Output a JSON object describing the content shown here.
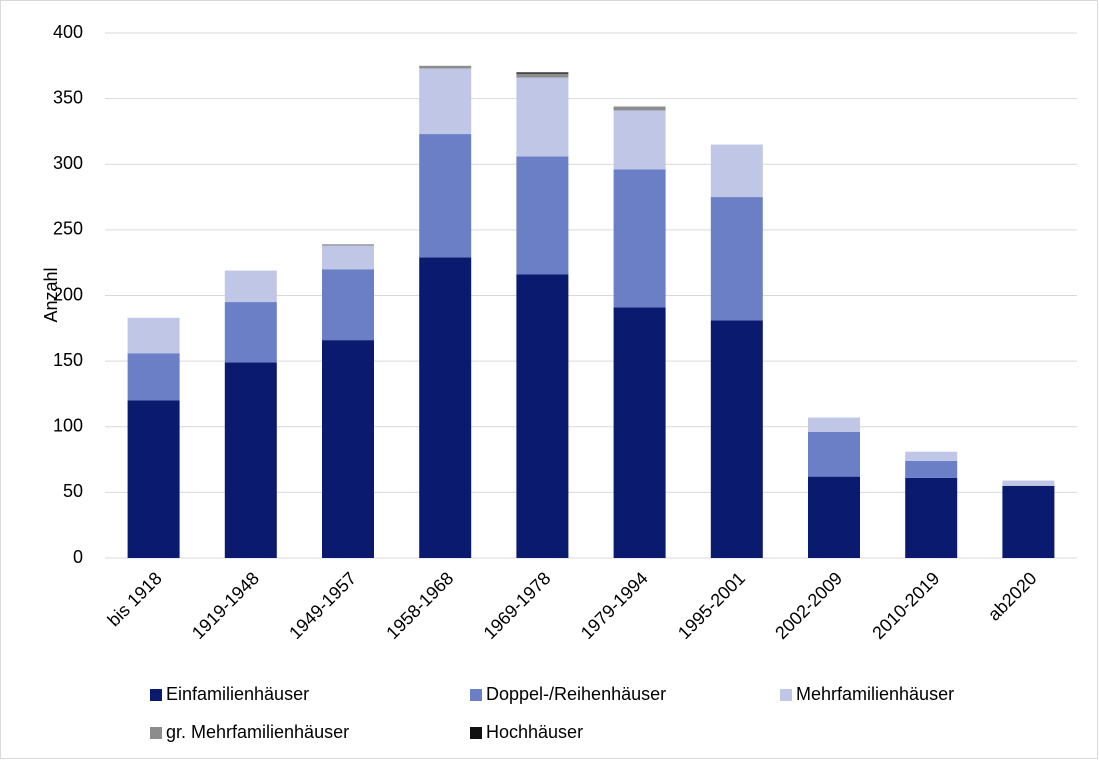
{
  "chart_data": {
    "type": "stacked_bar",
    "y_label": "Anzahl",
    "categories": [
      "bis 1918",
      "1919-1948",
      "1949-1957",
      "1958-1968",
      "1969-1978",
      "1979-1994",
      "1995-2001",
      "2002-2009",
      "2010-2019",
      "ab2020"
    ],
    "series": [
      {
        "name": "Einfamilienhäuser",
        "color": "#0a1a6e",
        "values": [
          120,
          149,
          166,
          229,
          216,
          191,
          181,
          62,
          61,
          55
        ]
      },
      {
        "name": "Doppel-/Reihenhäuser",
        "color": "#6a7fc6",
        "values": [
          36,
          46,
          54,
          94,
          90,
          105,
          94,
          34,
          13,
          0
        ]
      },
      {
        "name": "Mehrfamilienhäuser",
        "color": "#c0c7e6",
        "values": [
          27,
          24,
          18,
          50,
          60,
          45,
          40,
          11,
          7,
          4
        ]
      },
      {
        "name": "gr. Mehrfamilienhäuser",
        "color": "#8c8c8c",
        "values": [
          0,
          0,
          1,
          2,
          3,
          3,
          0,
          0,
          0,
          0
        ]
      },
      {
        "name": "Hochhäuser",
        "color": "#111111",
        "values": [
          0,
          0,
          0,
          0,
          1,
          0,
          0,
          0,
          0,
          0
        ]
      }
    ],
    "ylim": [
      0,
      400
    ],
    "yticks": [
      0,
      50,
      100,
      150,
      200,
      250,
      300,
      350,
      400
    ],
    "grid": true,
    "legend": "bottom"
  }
}
